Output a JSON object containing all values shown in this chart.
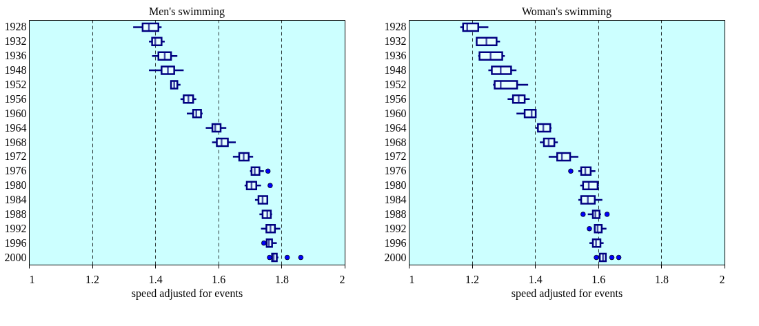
{
  "chart_data": [
    {
      "type": "box",
      "title": "Men's swimming",
      "xlabel": "speed adjusted for events",
      "orientation": "horizontal",
      "grid": "x",
      "line_style": "dashed",
      "xlim": [
        1,
        2
      ],
      "xticks": [
        1,
        1.2,
        1.4,
        1.6,
        1.8,
        2
      ],
      "categories": [
        "1928",
        "1932",
        "1936",
        "1948",
        "1952",
        "1956",
        "1960",
        "1964",
        "1968",
        "1972",
        "1976",
        "1980",
        "1984",
        "1988",
        "1992",
        "1996",
        "2000"
      ],
      "series": [
        {
          "color": "#000080",
          "boxes": [
            {
              "low": 1.33,
              "q1": 1.36,
              "median": 1.38,
              "q3": 1.41,
              "high": 1.42
            },
            {
              "low": 1.38,
              "q1": 1.39,
              "median": 1.4,
              "q3": 1.42,
              "high": 1.43
            },
            {
              "low": 1.39,
              "q1": 1.41,
              "median": 1.43,
              "q3": 1.45,
              "high": 1.47
            },
            {
              "low": 1.38,
              "q1": 1.42,
              "median": 1.44,
              "q3": 1.46,
              "high": 1.49
            },
            {
              "low": 1.45,
              "q1": 1.45,
              "median": 1.46,
              "q3": 1.47,
              "high": 1.48
            },
            {
              "low": 1.48,
              "q1": 1.49,
              "median": 1.505,
              "q3": 1.52,
              "high": 1.53
            },
            {
              "low": 1.5,
              "q1": 1.52,
              "median": 1.53,
              "q3": 1.545,
              "high": 1.55
            },
            {
              "low": 1.56,
              "q1": 1.581,
              "median": 1.59,
              "q3": 1.607,
              "high": 1.625
            },
            {
              "low": 1.58,
              "q1": 1.595,
              "median": 1.61,
              "q3": 1.63,
              "high": 1.655
            },
            {
              "low": 1.646,
              "q1": 1.666,
              "median": 1.68,
              "q3": 1.696,
              "high": 1.71
            },
            {
              "low": 1.7,
              "q1": 1.705,
              "median": 1.715,
              "q3": 1.73,
              "high": 1.744,
              "outliers": [
                1.757
              ]
            },
            {
              "low": 1.683,
              "q1": 1.69,
              "median": 1.705,
              "q3": 1.72,
              "high": 1.735,
              "outliers": [
                1.764
              ]
            },
            {
              "low": 1.716,
              "q1": 1.727,
              "median": 1.74,
              "q3": 1.755,
              "high": 1.757
            },
            {
              "low": 1.73,
              "q1": 1.74,
              "median": 1.755,
              "q3": 1.766,
              "high": 1.77
            },
            {
              "low": 1.735,
              "q1": 1.752,
              "median": 1.765,
              "q3": 1.779,
              "high": 1.796
            },
            {
              "low": 1.75,
              "q1": 1.753,
              "median": 1.76,
              "q3": 1.77,
              "high": 1.785,
              "outliers": [
                1.744
              ]
            },
            {
              "low": 1.768,
              "q1": 1.77,
              "median": 1.775,
              "q3": 1.785,
              "high": 1.79,
              "outliers": [
                1.762,
                1.818,
                1.861
              ]
            }
          ]
        }
      ]
    },
    {
      "type": "box",
      "title": "Woman's swimming",
      "xlabel": "speed adjusted for events",
      "orientation": "horizontal",
      "grid": "x",
      "line_style": "dashed",
      "xlim": [
        1,
        2
      ],
      "xticks": [
        1,
        1.2,
        1.4,
        1.6,
        1.8,
        2
      ],
      "categories": [
        "1928",
        "1932",
        "1936",
        "1948",
        "1952",
        "1956",
        "1960",
        "1964",
        "1968",
        "1972",
        "1976",
        "1980",
        "1984",
        "1988",
        "1992",
        "1996",
        "2000"
      ],
      "series": [
        {
          "color": "#000080",
          "boxes": [
            {
              "low": 1.163,
              "q1": 1.172,
              "median": 1.185,
              "q3": 1.22,
              "high": 1.252
            },
            {
              "low": 1.213,
              "q1": 1.215,
              "median": 1.246,
              "q3": 1.278,
              "high": 1.289
            },
            {
              "low": 1.22,
              "q1": 1.224,
              "median": 1.259,
              "q3": 1.296,
              "high": 1.304
            },
            {
              "low": 1.252,
              "q1": 1.263,
              "median": 1.291,
              "q3": 1.324,
              "high": 1.341
            },
            {
              "low": 1.267,
              "q1": 1.272,
              "median": 1.291,
              "q3": 1.343,
              "high": 1.378
            },
            {
              "low": 1.313,
              "q1": 1.33,
              "median": 1.348,
              "q3": 1.367,
              "high": 1.383
            },
            {
              "low": 1.341,
              "q1": 1.367,
              "median": 1.389,
              "q3": 1.402,
              "high": 1.404
            },
            {
              "low": 1.402,
              "q1": 1.409,
              "median": 1.426,
              "q3": 1.448,
              "high": 1.452
            },
            {
              "low": 1.415,
              "q1": 1.428,
              "median": 1.443,
              "q3": 1.461,
              "high": 1.472
            },
            {
              "low": 1.443,
              "q1": 1.47,
              "median": 1.485,
              "q3": 1.511,
              "high": 1.537
            },
            {
              "low": 1.537,
              "q1": 1.546,
              "median": 1.559,
              "q3": 1.576,
              "high": 1.591,
              "outliers": [
                1.513
              ]
            },
            {
              "low": 1.543,
              "q1": 1.552,
              "median": 1.57,
              "q3": 1.598,
              "high": 1.602
            },
            {
              "low": 1.537,
              "q1": 1.546,
              "median": 1.567,
              "q3": 1.589,
              "high": 1.613
            },
            {
              "low": 1.567,
              "q1": 1.583,
              "median": 1.591,
              "q3": 1.604,
              "high": 1.609,
              "outliers": [
                1.552,
                1.628
              ]
            },
            {
              "low": 1.587,
              "q1": 1.589,
              "median": 1.598,
              "q3": 1.611,
              "high": 1.626,
              "outliers": [
                1.572
              ]
            },
            {
              "low": 1.572,
              "q1": 1.583,
              "median": 1.593,
              "q3": 1.607,
              "high": 1.617
            },
            {
              "low": 1.602,
              "q1": 1.605,
              "median": 1.615,
              "q3": 1.624,
              "high": 1.626,
              "outliers": [
                1.594,
                1.643,
                1.665
              ]
            }
          ]
        }
      ]
    }
  ]
}
